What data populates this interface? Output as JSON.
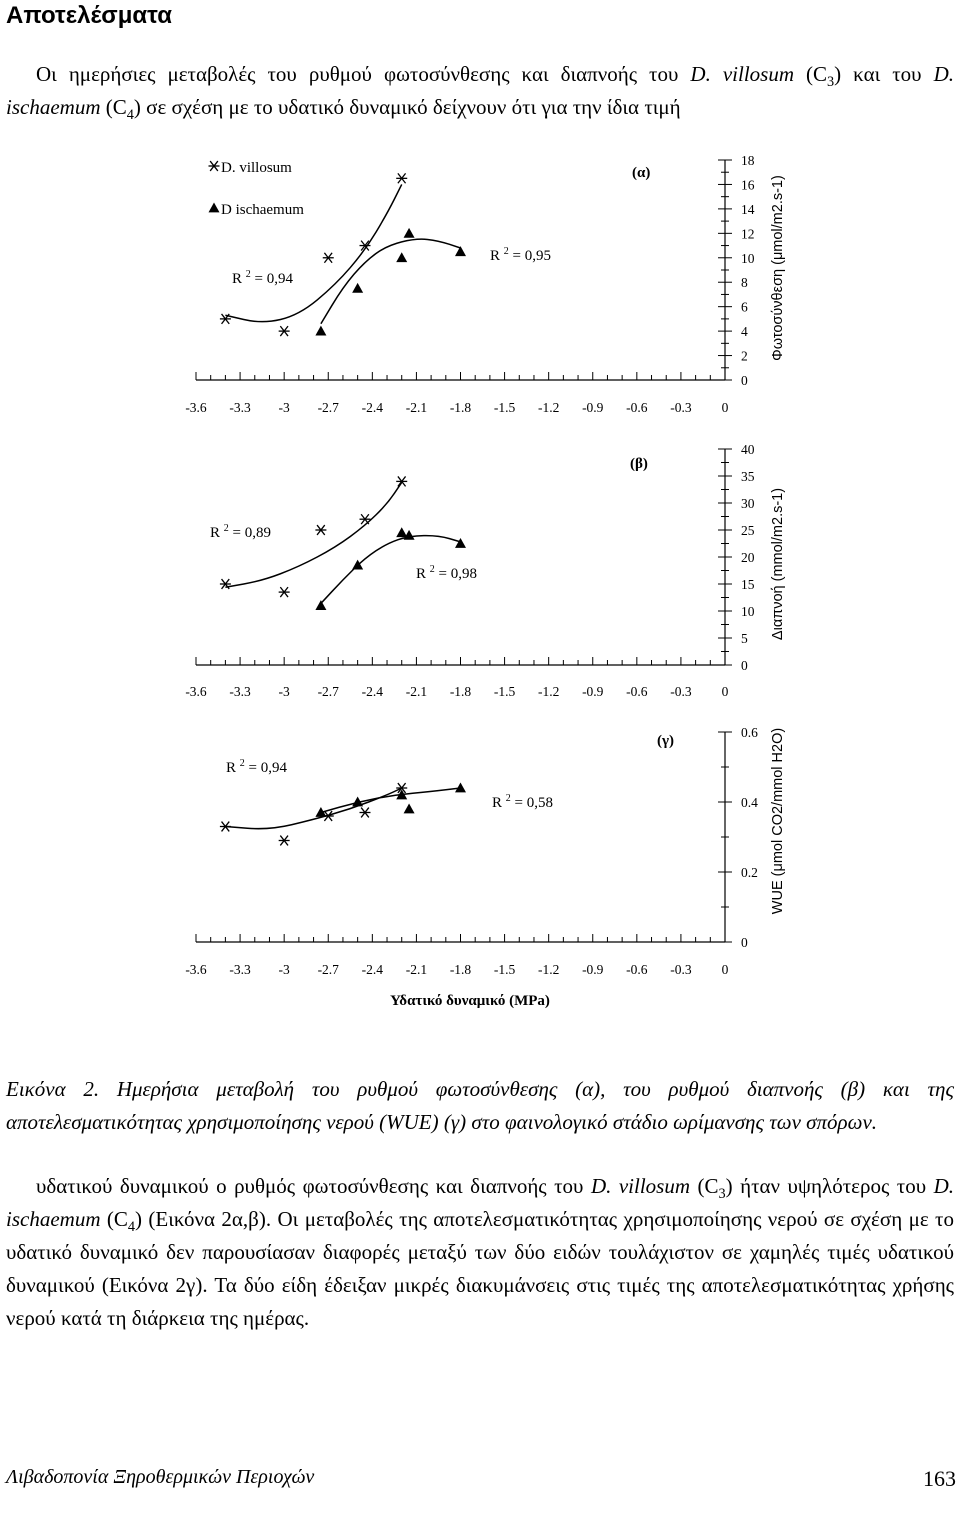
{
  "page": {
    "section_title": "Αποτελέσματα",
    "intro": {
      "p1": "Οι ημερήσιες μεταβολές του ρυθμού φωτοσύνθεσης και διαπνοής του ",
      "sp1": "D. villosum",
      "p2": " (C",
      "sub1": "3",
      "p3": ") και του ",
      "sp2": "D. ischaemum",
      "p4": " (C",
      "sub2": "4",
      "p5": ") σε σχέση με το υδατικό δυναμικό δείχνουν ότι για την ίδια τιμή"
    },
    "caption": "Εικόνα 2. Ημερήσια μεταβολή του ρυθμού φωτοσύνθεσης (α), του ρυθμού διαπνοής (β) και της αποτελεσματικότητας χρησιμοποίησης νερού (WUE) (γ) στο φαινολογικό στάδιο ωρίμανσης των σπόρων.",
    "body2": {
      "p1": "υδατικού δυναμικού ο ρυθμός φωτοσύνθεσης και διαπνοής του ",
      "sp1": "D. villosum",
      "p2": " (C",
      "sub1": "3",
      "p3": ") ήταν υψηλότερος του ",
      "sp2": "D. ischaemum",
      "p4": " (C",
      "sub2": "4",
      "p5": ") (Εικόνα 2α,β). Οι μεταβολές της αποτελεσματικότητας χρησιμοποίησης νερού σε σχέση με το υδατικό δυναμικό δεν παρουσίασαν διαφορές μεταξύ των δύο ειδών τουλάχιστον σε χαμηλές τιμές υδατικού δυναμικού (Εικόνα 2γ). Τα δύο είδη έδειξαν μικρές διακυμάνσεις στις τιμές της αποτελεσματικότητας χρήσης νερού κατά τη διάρκεια της ημέρας."
    },
    "footer": {
      "left": "Λιβαδοπονία Ξηροθερμικών Περιοχών",
      "page_number": "163"
    }
  },
  "chart_data": [
    {
      "type": "scatter",
      "panel_label": "(α)",
      "legend": {
        "placement": "top-left",
        "entries": [
          "D. villosum",
          "D ischaemum"
        ]
      },
      "ylabel": "Φωτοσύνθεση (μmol/m2.s-1)",
      "xlim": [
        -3.6,
        0
      ],
      "ylim": [
        0,
        18
      ],
      "x_ticks": [
        "-3.6",
        "-3.3",
        "-3",
        "-2.7",
        "-2.4",
        "-2.1",
        "-1.8",
        "-1.5",
        "-1.2",
        "-0.9",
        "-0.6",
        "-0.3",
        "0"
      ],
      "y_ticks": [
        "0",
        "2",
        "4",
        "6",
        "8",
        "10",
        "12",
        "14",
        "16",
        "18"
      ],
      "series": [
        {
          "name": "D. villosum",
          "marker": "star",
          "x": [
            -3.4,
            -3.0,
            -2.7,
            -2.45,
            -2.2
          ],
          "y": [
            5,
            4,
            10,
            11,
            16.5
          ],
          "fit": {
            "x": [
              -3.4,
              -3.15,
              -2.9,
              -2.65,
              -2.45,
              -2.3,
              -2.2
            ],
            "y": [
              5.3,
              4.6,
              5.3,
              7.8,
              10.6,
              13.6,
              16.0
            ]
          },
          "r2_label": "R 2 = 0,94"
        },
        {
          "name": "D ischaemum",
          "marker": "triangle",
          "x": [
            -2.75,
            -2.5,
            -2.2,
            -2.15,
            -1.8
          ],
          "y": [
            4,
            7.5,
            10,
            12,
            10.5
          ],
          "fit": {
            "x": [
              -2.75,
              -2.6,
              -2.45,
              -2.3,
              -2.1,
              -1.95,
              -1.8
            ],
            "y": [
              4.6,
              7.6,
              9.7,
              11.0,
              11.6,
              11.4,
              10.8
            ]
          },
          "r2_label": "R 2 = 0,95"
        }
      ]
    },
    {
      "type": "scatter",
      "panel_label": "(β)",
      "ylabel": "Διαπνοή (mmol/m2.s-1)",
      "xlim": [
        -3.6,
        0
      ],
      "ylim": [
        0,
        40
      ],
      "x_ticks": [
        "-3.6",
        "-3.3",
        "-3",
        "-2.7",
        "-2.4",
        "-2.1",
        "-1.8",
        "-1.5",
        "-1.2",
        "-0.9",
        "-0.6",
        "-0.3",
        "0"
      ],
      "x_tick_labels_visible": true,
      "y_ticks": [
        "0",
        "5",
        "10",
        "15",
        "20",
        "25",
        "30",
        "35",
        "40"
      ],
      "series": [
        {
          "name": "D. villosum",
          "marker": "star",
          "x": [
            -3.4,
            -3.0,
            -2.75,
            -2.45,
            -2.2
          ],
          "y": [
            15,
            13.5,
            25,
            27,
            34
          ],
          "fit": {
            "x": [
              -3.4,
              -3.15,
              -2.9,
              -2.65,
              -2.45,
              -2.3,
              -2.2
            ],
            "y": [
              14.4,
              15.6,
              18.2,
              21.8,
              25.8,
              29.8,
              33.8
            ]
          },
          "r2_label": "R 2 = 0,89"
        },
        {
          "name": "D ischaemum",
          "marker": "triangle",
          "x": [
            -2.75,
            -2.5,
            -2.2,
            -2.15,
            -1.8
          ],
          "y": [
            11,
            18.5,
            24.5,
            24,
            22.5
          ],
          "fit": {
            "x": [
              -2.75,
              -2.6,
              -2.45,
              -2.3,
              -2.15,
              -1.95,
              -1.8
            ],
            "y": [
              11.4,
              15.8,
              19.8,
              22.5,
              23.9,
              24.0,
              22.8
            ]
          },
          "r2_label": "R 2 = 0,98"
        }
      ]
    },
    {
      "type": "scatter",
      "panel_label": "(γ)",
      "ylabel": "WUE (μmol CO2/mmol H2O)",
      "xlabel": "Υδατικό δυναμικό (MPa)",
      "xlim": [
        -3.6,
        0
      ],
      "ylim": [
        0,
        0.6
      ],
      "x_ticks": [
        "-3.6",
        "-3.3",
        "-3",
        "-2.7",
        "-2.4",
        "-2.1",
        "-1.8",
        "-1.5",
        "-1.2",
        "-0.9",
        "-0.6",
        "-0.3",
        "0"
      ],
      "y_ticks": [
        "0",
        "0.2",
        "0.4",
        "0.6"
      ],
      "series": [
        {
          "name": "D. villosum",
          "marker": "star",
          "x": [
            -3.4,
            -3.0,
            -2.7,
            -2.45,
            -2.2
          ],
          "y": [
            0.33,
            0.29,
            0.36,
            0.37,
            0.44
          ],
          "fit": {
            "x": [
              -3.4,
              -3.1,
              -2.8,
              -2.55,
              -2.3,
              -2.2
            ],
            "y": [
              0.33,
              0.32,
              0.35,
              0.38,
              0.42,
              0.44
            ]
          },
          "r2_label": "R 2 = 0,94"
        },
        {
          "name": "D ischaemum",
          "marker": "triangle",
          "x": [
            -2.75,
            -2.5,
            -2.2,
            -2.15,
            -1.8
          ],
          "y": [
            0.37,
            0.4,
            0.42,
            0.38,
            0.44
          ],
          "fit": {
            "x": [
              -2.75,
              -2.5,
              -2.25,
              -2.0,
              -1.8
            ],
            "y": [
              0.37,
              0.4,
              0.42,
              0.43,
              0.44
            ]
          },
          "r2_label": "R 2 = 0,58"
        }
      ]
    }
  ]
}
